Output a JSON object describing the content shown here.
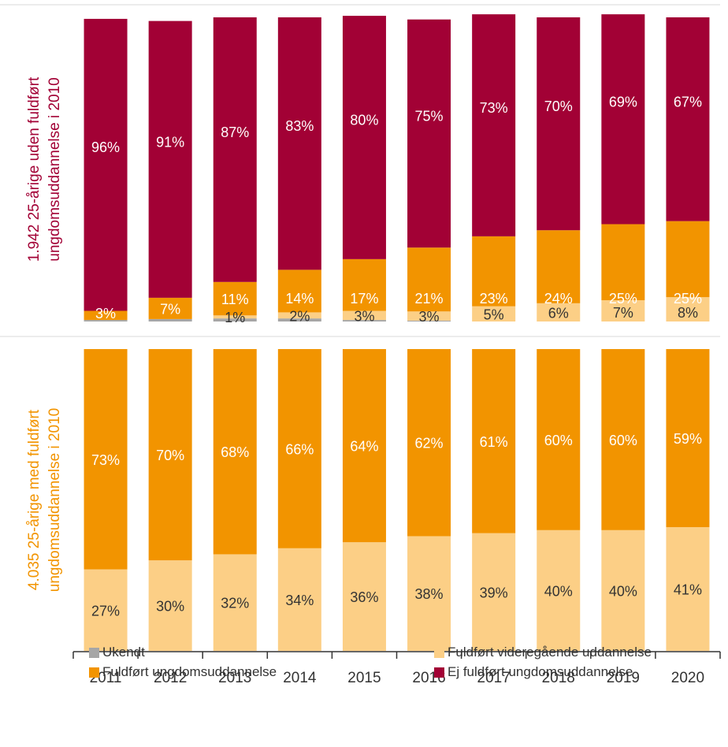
{
  "chart_data": {
    "type": "bar",
    "stacked": true,
    "categories": [
      "2011",
      "2012",
      "2013",
      "2014",
      "2015",
      "2016",
      "2017",
      "2018",
      "2019",
      "2020"
    ],
    "colors": {
      "Ukendt": "#a6a6a6",
      "Fuldført videregående uddannelse": "#fccf86",
      "Fuldført ungdomsuddannelse": "#f29400",
      "Ej fuldført ungdomsuddannelse": "#a20135"
    },
    "panels": [
      {
        "label": "1.942 25-årige uden fuldført ungdomsuddannelse i 2010",
        "label_lines": [
          "1.942 25-årige uden fuldført",
          "ungdomsuddannelse i 2010"
        ],
        "label_color": "#a20135",
        "series": [
          {
            "name": "Ukendt",
            "values": [
              0.5,
              0.8,
              1,
              1,
              0.5,
              0.3,
              0,
              0,
              0,
              0
            ]
          },
          {
            "name": "Fuldført videregående uddannelse",
            "values": [
              0,
              0,
              1,
              2,
              3,
              3,
              5,
              6,
              7,
              8
            ]
          },
          {
            "name": "Fuldført ungdomsuddannelse",
            "values": [
              3,
              7,
              11,
              14,
              17,
              21,
              23,
              24,
              25,
              25
            ]
          },
          {
            "name": "Ej fuldført ungdomsuddannelse",
            "values": [
              96,
              91,
              87,
              83,
              80,
              75,
              73,
              70,
              69,
              67
            ]
          }
        ],
        "data_labels": {
          "Fuldført videregående uddannelse": [
            "",
            "",
            "1%",
            "2%",
            "3%",
            "3%",
            "5%",
            "6%",
            "7%",
            "8%"
          ],
          "Fuldført ungdomsuddannelse": [
            "3%",
            "7%",
            "11%",
            "14%",
            "17%",
            "21%",
            "23%",
            "24%",
            "25%",
            "25%"
          ],
          "Ej fuldført ungdomsuddannelse": [
            "96%",
            "91%",
            "87%",
            "83%",
            "80%",
            "75%",
            "73%",
            "70%",
            "69%",
            "67%"
          ]
        }
      },
      {
        "label": "4.035 25-årige med fuldført ungdomsuddannelse i 2010",
        "label_lines": [
          "4.035 25-årige med fuldført",
          "ungdomsuddannelse i 2010"
        ],
        "label_color": "#f29400",
        "series": [
          {
            "name": "Fuldført videregående uddannelse",
            "values": [
              27,
              30,
              32,
              34,
              36,
              38,
              39,
              40,
              40,
              41
            ]
          },
          {
            "name": "Fuldført ungdomsuddannelse",
            "values": [
              73,
              70,
              68,
              66,
              64,
              62,
              61,
              60,
              60,
              59
            ]
          }
        ],
        "data_labels": {
          "Fuldført videregående uddannelse": [
            "27%",
            "30%",
            "32%",
            "34%",
            "36%",
            "38%",
            "39%",
            "40%",
            "40%",
            "41%"
          ],
          "Fuldført ungdomsuddannelse": [
            "73%",
            "70%",
            "68%",
            "66%",
            "64%",
            "62%",
            "61%",
            "60%",
            "60%",
            "59%"
          ]
        }
      }
    ],
    "legend": {
      "position": "bottom",
      "items": [
        "Ukendt",
        "Fuldført videregående uddannelse",
        "Fuldført ungdomsuddannelse",
        "Ej fuldført ungdomsuddannelse"
      ]
    },
    "ylim": [
      0,
      100
    ],
    "grid": false
  }
}
